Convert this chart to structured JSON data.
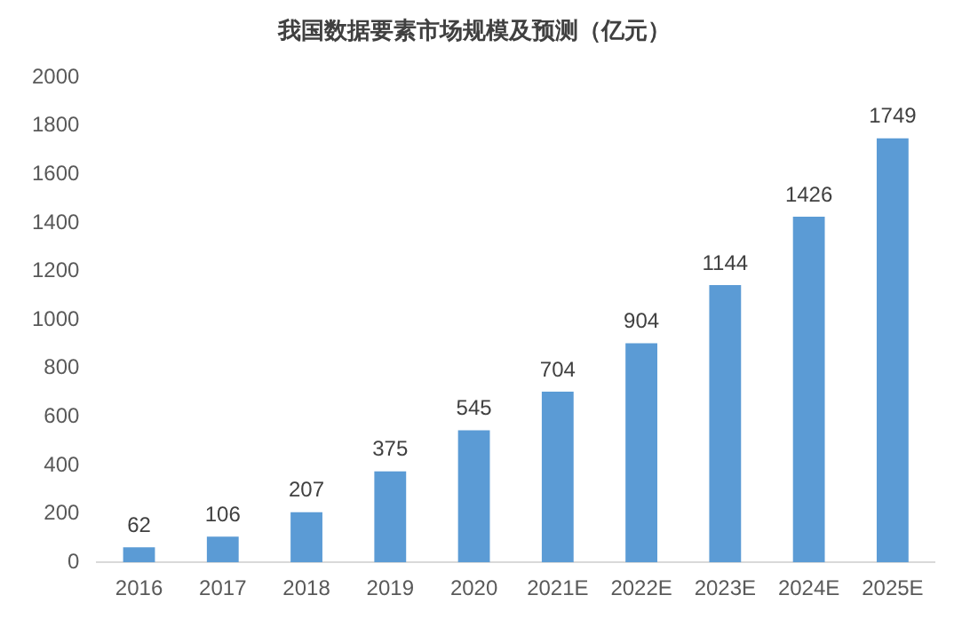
{
  "chart_data": {
    "type": "bar",
    "title": "我国数据要素市场规模及预测（亿元）",
    "categories": [
      "2016",
      "2017",
      "2018",
      "2019",
      "2020",
      "2021E",
      "2022E",
      "2023E",
      "2024E",
      "2025E"
    ],
    "values": [
      62,
      106,
      207,
      375,
      545,
      704,
      904,
      1144,
      1426,
      1749
    ],
    "color": "#5b9bd5",
    "ylim": [
      0,
      2000
    ],
    "yticks": [
      0,
      200,
      400,
      600,
      800,
      1000,
      1200,
      1400,
      1600,
      1800,
      2000
    ],
    "grid": false,
    "data_labels": true
  }
}
